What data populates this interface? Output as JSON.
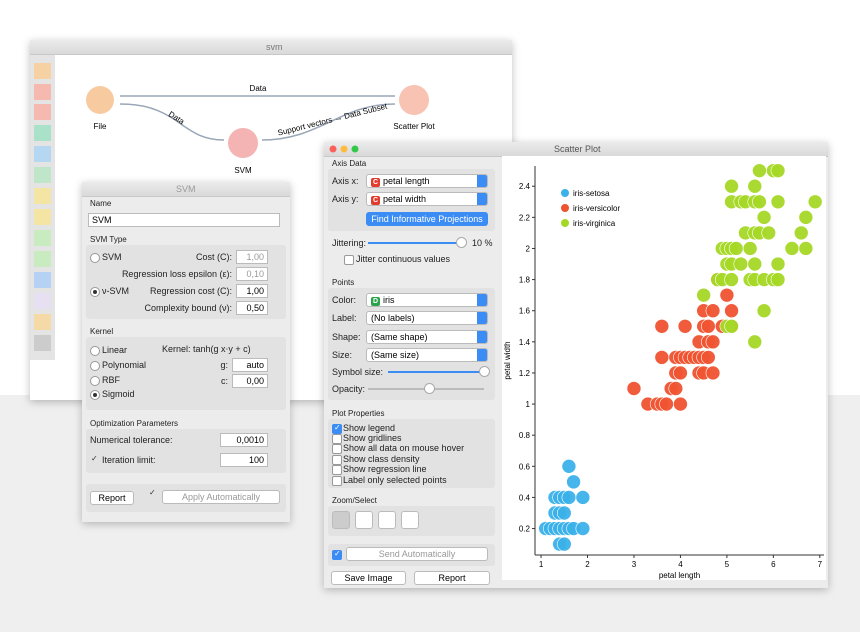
{
  "workflow": {
    "title": "svm",
    "nodes": [
      "File",
      "SVM",
      "Scatter Plot"
    ],
    "links": [
      "Data",
      "Data",
      "Support vectors → Data Subset"
    ]
  },
  "svm": {
    "title": "SVM",
    "name_heading": "Name",
    "name": "SVM",
    "type_heading": "SVM Type",
    "svm": "SVM",
    "cost_label": "Cost (C):",
    "cost": "1,00",
    "epsilon_label": "Regression loss epsilon (ε):",
    "epsilon": "0,10",
    "nu_svm": "ν-SVM",
    "reg_cost_label": "Regression cost (C):",
    "reg_cost": "1,00",
    "nu_label": "Complexity bound (ν):",
    "nu": "0,50",
    "kernel_heading": "Kernel",
    "kernels": [
      "Linear",
      "Polynomial",
      "RBF",
      "Sigmoid"
    ],
    "kernel_formula": "Kernel: tanh(g x⋅y + c)",
    "g_label": "g:",
    "g": "auto",
    "c_label": "c:",
    "c": "0,00",
    "opt_heading": "Optimization Parameters",
    "tol_label": "Numerical tolerance:",
    "tol": "0,0010",
    "iter_label": "Iteration limit:",
    "iter": "100",
    "report": "Report",
    "apply": "Apply Automatically"
  },
  "scatter": {
    "title": "Scatter Plot",
    "axis_heading": "Axis Data",
    "axis_x_label": "Axis x:",
    "axis_x_icon": "C",
    "axis_x": "petal length",
    "axis_y_label": "Axis y:",
    "axis_y_icon": "C",
    "axis_y": "petal width",
    "find": "Find Informative Projections",
    "jitter_label": "Jittering:",
    "jitter": "10 %",
    "jitter_cont": "Jitter continuous values",
    "points_heading": "Points",
    "color_label": "Color:",
    "color_icon": "D",
    "color": "iris",
    "label_label": "Label:",
    "label": "(No labels)",
    "shape_label": "Shape:",
    "shape": "(Same shape)",
    "size_label": "Size:",
    "size": "(Same size)",
    "symbol_label": "Symbol size:",
    "opacity_label": "Opacity:",
    "props_heading": "Plot Properties",
    "props": [
      "Show legend",
      "Show gridlines",
      "Show all data on mouse hover",
      "Show class density",
      "Show regression line",
      "Label only selected points"
    ],
    "zoom_heading": "Zoom/Select",
    "send": "Send Automatically",
    "save": "Save Image",
    "report": "Report"
  },
  "chart_data": {
    "type": "scatter",
    "x_label": "petal length",
    "y_label": "petal width",
    "xlim": [
      0.87,
      7.09
    ],
    "ylim": [
      0.03,
      2.53
    ],
    "xticks": [
      1,
      2,
      3,
      4,
      5,
      6,
      7
    ],
    "yticks": [
      0.2,
      0.4,
      0.6,
      0.8,
      1,
      1.2,
      1.4,
      1.6,
      1.8,
      2,
      2.2,
      2.4
    ],
    "legend": "upper left",
    "series": [
      {
        "name": "iris-setosa",
        "color": "#3bb1ea",
        "x": [
          1.4,
          1.5,
          1.1,
          1.2,
          1.3,
          1.4,
          1.5,
          1.6,
          1.7,
          1.9,
          1.3,
          1.4,
          1.5,
          1.3,
          1.4,
          1.5,
          1.6,
          1.9,
          1.7,
          1.6
        ],
        "y": [
          0.1,
          0.1,
          0.2,
          0.2,
          0.2,
          0.2,
          0.2,
          0.2,
          0.2,
          0.2,
          0.3,
          0.3,
          0.3,
          0.4,
          0.4,
          0.4,
          0.4,
          0.4,
          0.5,
          0.6
        ]
      },
      {
        "name": "iris-versicolor",
        "color": "#ef5330",
        "x": [
          3.3,
          3.5,
          3.6,
          3.7,
          4.0,
          3.0,
          3.8,
          3.9,
          3.9,
          4.0,
          4.4,
          4.5,
          4.7,
          3.6,
          3.9,
          4.0,
          4.1,
          4.2,
          4.3,
          4.4,
          4.5,
          4.6,
          4.4,
          4.6,
          4.7,
          3.6,
          4.1,
          4.5,
          4.6,
          4.9,
          5.1,
          4.5,
          4.7,
          5.1,
          5.0,
          4.8
        ],
        "y": [
          1.0,
          1.0,
          1.0,
          1.0,
          1.0,
          1.1,
          1.1,
          1.1,
          1.2,
          1.2,
          1.2,
          1.2,
          1.2,
          1.3,
          1.3,
          1.3,
          1.3,
          1.3,
          1.3,
          1.3,
          1.3,
          1.3,
          1.4,
          1.4,
          1.4,
          1.5,
          1.5,
          1.5,
          1.5,
          1.5,
          1.5,
          1.6,
          1.6,
          1.6,
          1.7,
          1.8
        ]
      },
      {
        "name": "iris-virginica",
        "color": "#a5d826",
        "x": [
          5.6,
          5.0,
          5.1,
          5.8,
          4.5,
          4.8,
          4.9,
          5.1,
          5.5,
          5.6,
          5.8,
          6.0,
          6.1,
          5.0,
          5.1,
          5.3,
          5.6,
          6.1,
          4.9,
          5.0,
          5.1,
          5.2,
          5.5,
          6.4,
          6.7,
          5.4,
          5.6,
          5.7,
          5.9,
          6.6,
          5.8,
          6.7,
          5.1,
          5.3,
          5.4,
          5.6,
          5.7,
          6.1,
          6.9,
          5.1,
          5.6,
          5.7,
          6.0,
          6.1
        ],
        "y": [
          1.4,
          1.5,
          1.5,
          1.6,
          1.7,
          1.8,
          1.8,
          1.8,
          1.8,
          1.8,
          1.8,
          1.8,
          1.8,
          1.9,
          1.9,
          1.9,
          1.9,
          1.9,
          2.0,
          2.0,
          2.0,
          2.0,
          2.0,
          2.0,
          2.0,
          2.1,
          2.1,
          2.1,
          2.1,
          2.1,
          2.2,
          2.2,
          2.3,
          2.3,
          2.3,
          2.3,
          2.3,
          2.3,
          2.3,
          2.4,
          2.4,
          2.5,
          2.5,
          2.5
        ]
      }
    ]
  }
}
